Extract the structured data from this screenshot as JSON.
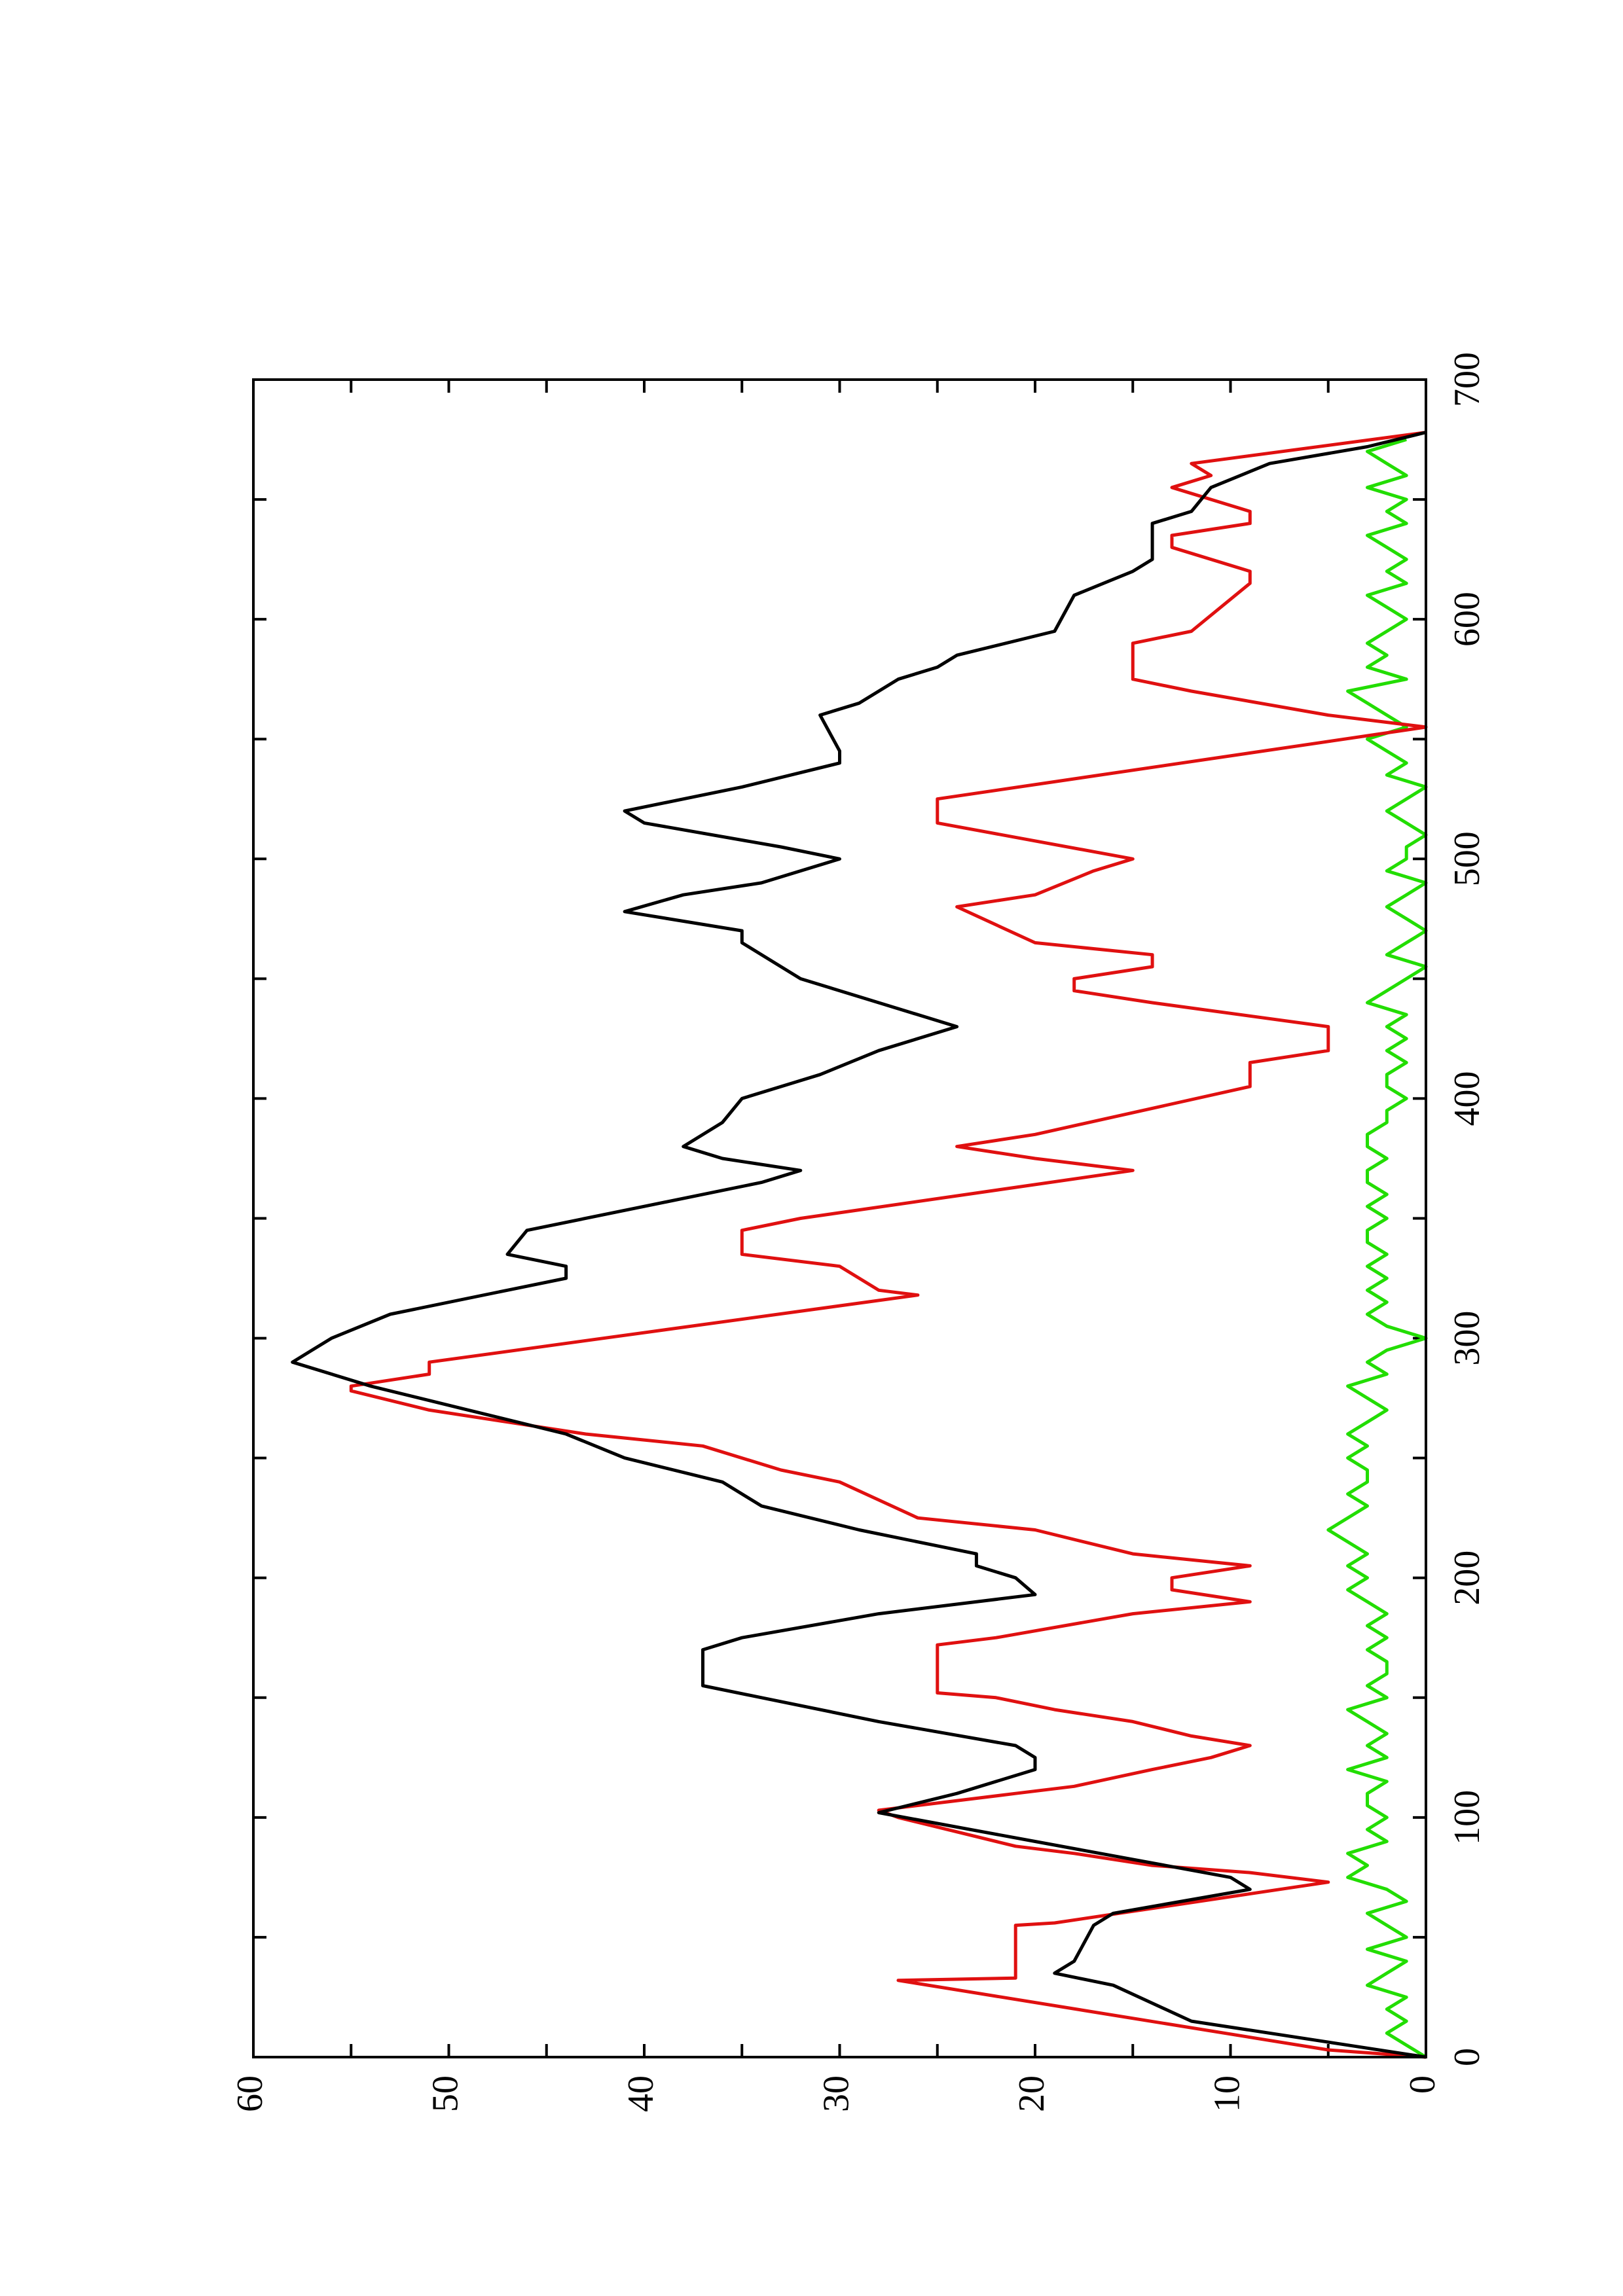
{
  "chart_data": {
    "type": "line",
    "xlim": [
      0,
      700
    ],
    "ylim": [
      0,
      60
    ],
    "xticks": [
      0,
      100,
      200,
      300,
      400,
      500,
      600,
      700
    ],
    "xminorticks": [
      50,
      150,
      250,
      350,
      450,
      550,
      650
    ],
    "yticks": [
      0,
      10,
      20,
      30,
      40,
      50,
      60
    ],
    "yminorticks": [
      5,
      15,
      25,
      35,
      45,
      55
    ],
    "rotated": true,
    "series": [
      {
        "color": "#000000",
        "x": [
          0,
          5,
          15,
          30,
          35,
          40,
          55,
          60,
          70,
          75,
          90,
          102,
          110,
          120,
          125,
          130,
          140,
          150,
          155,
          170,
          175,
          185,
          193,
          200,
          205,
          210,
          220,
          230,
          240,
          250,
          260,
          270,
          280,
          290,
          295,
          300,
          310,
          320,
          325,
          330,
          335,
          345,
          355,
          365,
          370,
          375,
          380,
          390,
          400,
          410,
          420,
          430,
          440,
          450,
          455,
          465,
          470,
          478,
          485,
          490,
          500,
          505,
          515,
          520,
          530,
          540,
          545,
          560,
          565,
          575,
          580,
          585,
          595,
          610,
          620,
          625,
          635,
          640,
          645,
          655,
          665,
          672,
          678
        ],
        "values": [
          0,
          4,
          12,
          16,
          19,
          18,
          17,
          16,
          9,
          10,
          20,
          28,
          24,
          20,
          20,
          21,
          28,
          34,
          37,
          37,
          35,
          28,
          20,
          21,
          23,
          23,
          29,
          34,
          36,
          41,
          44,
          49,
          54,
          58,
          57,
          56,
          53,
          47,
          44,
          44,
          47,
          46,
          40,
          34,
          32,
          36,
          38,
          36,
          35,
          31,
          28,
          24,
          28,
          32,
          33,
          35,
          35,
          41,
          38,
          34,
          30,
          33,
          40,
          41,
          35,
          30,
          30,
          31,
          29,
          27,
          25,
          24,
          19,
          18,
          15,
          14,
          14,
          14,
          12,
          11,
          8,
          3,
          0
        ]
      },
      {
        "color": "#e01010",
        "x": [
          0,
          3,
          32,
          33,
          55,
          56,
          73,
          77,
          80,
          85,
          88,
          100,
          103,
          110,
          113,
          120,
          125,
          130,
          134,
          140,
          145,
          150,
          152,
          172,
          175,
          185,
          190,
          195,
          200,
          205,
          210,
          220,
          225,
          240,
          245,
          255,
          260,
          265,
          270,
          278,
          280,
          285,
          290,
          318,
          320,
          330,
          335,
          345,
          350,
          370,
          375,
          380,
          385,
          405,
          415,
          420,
          430,
          440,
          445,
          450,
          455,
          460,
          465,
          480,
          485,
          495,
          500,
          515,
          525,
          555,
          560,
          570,
          575,
          590,
          595,
          615,
          620,
          630,
          635,
          640,
          645,
          655,
          660,
          665,
          678
        ],
        "values": [
          0,
          5,
          27,
          21,
          21,
          19,
          5,
          9,
          14,
          18,
          21,
          27,
          28,
          21,
          18,
          14,
          11,
          9,
          12,
          15,
          19,
          22,
          25,
          25,
          22,
          15,
          9,
          13,
          13,
          9,
          15,
          20,
          26,
          30,
          33,
          37,
          43,
          47,
          51,
          55,
          55,
          51,
          51,
          26,
          28,
          30,
          35,
          35,
          32,
          15,
          20,
          24,
          20,
          9,
          9,
          5,
          5,
          14,
          18,
          18,
          14,
          14,
          20,
          24,
          20,
          17,
          15,
          25,
          25,
          0,
          5,
          12,
          15,
          15,
          12,
          9,
          9,
          13,
          13,
          9,
          9,
          13,
          11,
          12,
          0
        ]
      },
      {
        "color": "#22dd00",
        "x": [
          0,
          5,
          10,
          15,
          20,
          25,
          30,
          35,
          40,
          45,
          50,
          55,
          60,
          65,
          70,
          75,
          80,
          85,
          90,
          95,
          100,
          105,
          110,
          115,
          120,
          125,
          130,
          135,
          140,
          145,
          150,
          155,
          160,
          165,
          170,
          175,
          180,
          185,
          190,
          195,
          200,
          205,
          210,
          215,
          220,
          225,
          230,
          235,
          240,
          245,
          250,
          255,
          260,
          265,
          270,
          275,
          280,
          285,
          290,
          295,
          300,
          305,
          310,
          315,
          320,
          325,
          330,
          335,
          340,
          345,
          350,
          355,
          360,
          365,
          370,
          375,
          380,
          385,
          390,
          395,
          400,
          405,
          410,
          415,
          420,
          425,
          430,
          435,
          440,
          445,
          450,
          455,
          460,
          465,
          470,
          475,
          480,
          485,
          490,
          495,
          500,
          505,
          510,
          515,
          520,
          525,
          530,
          535,
          540,
          545,
          550,
          555,
          560,
          565,
          570,
          575,
          580,
          585,
          590,
          595,
          600,
          605,
          610,
          615,
          620,
          625,
          630,
          635,
          640,
          645,
          650,
          655,
          660,
          665,
          670,
          675
        ],
        "values": [
          0,
          1,
          2,
          1,
          2,
          1,
          3,
          2,
          1,
          3,
          1,
          2,
          3,
          1,
          2,
          4,
          3,
          4,
          2,
          3,
          2,
          3,
          3,
          2,
          4,
          2,
          3,
          2,
          3,
          4,
          2,
          3,
          2,
          2,
          3,
          2,
          3,
          2,
          3,
          4,
          3,
          4,
          3,
          4,
          5,
          4,
          3,
          4,
          3,
          3,
          4,
          3,
          4,
          3,
          2,
          3,
          4,
          2,
          3,
          2,
          0,
          2,
          3,
          2,
          3,
          2,
          3,
          2,
          3,
          3,
          2,
          3,
          2,
          3,
          3,
          2,
          3,
          3,
          2,
          2,
          1,
          2,
          2,
          1,
          2,
          1,
          2,
          1,
          3,
          2,
          1,
          0,
          2,
          1,
          0,
          1,
          2,
          1,
          0,
          2,
          1,
          1,
          0,
          1,
          2,
          1,
          0,
          2,
          1,
          2,
          3,
          1,
          2,
          3,
          4,
          1,
          3,
          2,
          3,
          2,
          1,
          2,
          3,
          1,
          2,
          1,
          2,
          3,
          1,
          2,
          1,
          3,
          1,
          2,
          3,
          1
        ]
      }
    ]
  }
}
